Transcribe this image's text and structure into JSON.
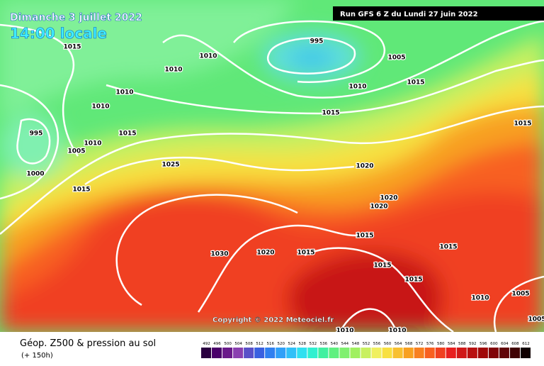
{
  "header": {
    "date": "Dimanche 3 juillet 2022",
    "time": "14:00 locale",
    "run": "Run GFS 6 Z du Lundi 27 juin 2022"
  },
  "copyright": "Copyright © 2022 Meteociel.fr",
  "footer": {
    "title": "Géop. Z500 & pression au sol",
    "lead": "(+ 150h)"
  },
  "isobar_labels": [
    "1015",
    "1010",
    "995",
    "1005",
    "1010",
    "1015",
    "1010",
    "1010",
    "1010",
    "1015",
    "1015",
    "995",
    "1015",
    "1010",
    "1005",
    "1025",
    "1020",
    "1000",
    "1015",
    "1020",
    "1020",
    "1015",
    "1015",
    "1020",
    "1015",
    "1030",
    "1015",
    "1015",
    "1010",
    "1005",
    "1010",
    "1010",
    "1005"
  ],
  "scale": {
    "labels": [
      "492",
      "496",
      "500",
      "504",
      "508",
      "512",
      "516",
      "520",
      "524",
      "528",
      "532",
      "536",
      "540",
      "544",
      "548",
      "552",
      "556",
      "560",
      "564",
      "568",
      "572",
      "576",
      "580",
      "584",
      "588",
      "592",
      "596",
      "600",
      "604",
      "608",
      "612"
    ],
    "colors": [
      "#2a0040",
      "#4a006a",
      "#6a1a8a",
      "#8a40b0",
      "#5a50c8",
      "#3a60e0",
      "#3080f0",
      "#30a0f8",
      "#30c0f8",
      "#30e0f0",
      "#30f0d0",
      "#40f0a0",
      "#60f080",
      "#80f070",
      "#a0f060",
      "#c8f060",
      "#f0f060",
      "#f8e040",
      "#f8c030",
      "#f8a020",
      "#f88020",
      "#f86020",
      "#f04020",
      "#e82020",
      "#d01818",
      "#b81010",
      "#a00808",
      "#800408",
      "#600408",
      "#400204",
      "#100000"
    ]
  }
}
